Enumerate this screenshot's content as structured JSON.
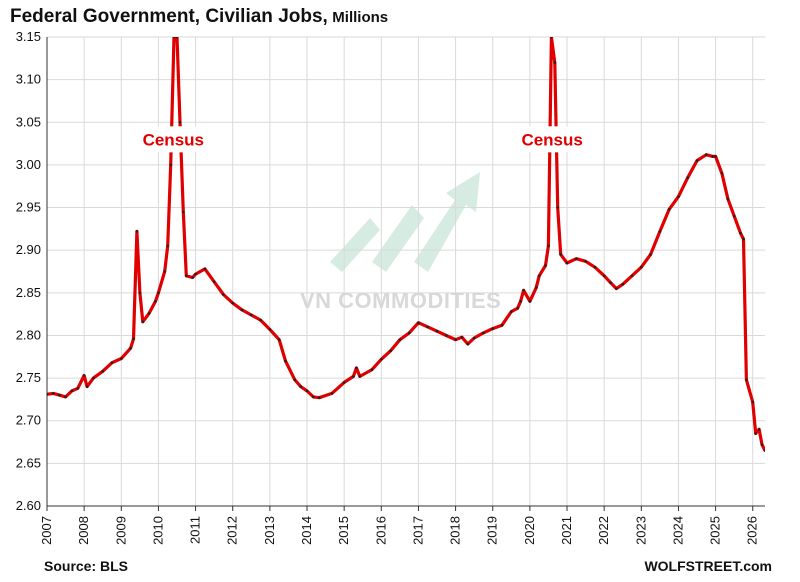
{
  "title": "Federal Government, Civilian Jobs,",
  "title_unit": "Millions",
  "source": "Source: BLS",
  "credit": "WOLFSTREET.com",
  "watermark": "VN COMMODITIES",
  "colors": {
    "line": "#e00000",
    "markers": "#222222",
    "grid": "#d9d9d9",
    "watermark": "#cfe8dc"
  },
  "chart_data": {
    "type": "line",
    "title": "Federal Government, Civilian Jobs, Millions",
    "xlabel": "",
    "ylabel": "",
    "xlim": [
      2007,
      2026.33
    ],
    "ylim": [
      2.6,
      3.15
    ],
    "grid": true,
    "y_ticks": [
      "2.60",
      "2.65",
      "2.70",
      "2.75",
      "2.80",
      "2.85",
      "2.90",
      "2.95",
      "3.00",
      "3.05",
      "3.10",
      "3.15"
    ],
    "x_ticks": [
      "2007",
      "2008",
      "2009",
      "2010",
      "2011",
      "2012",
      "2013",
      "2014",
      "2015",
      "2016",
      "2017",
      "2018",
      "2019",
      "2020",
      "2021",
      "2022",
      "2023",
      "2024",
      "2025",
      "2026"
    ],
    "annotations": [
      {
        "text": "Census",
        "x": 2010.4,
        "y": 3.03
      },
      {
        "text": "Census",
        "x": 2020.6,
        "y": 3.03
      }
    ],
    "series": [
      {
        "points": [
          [
            2007.0,
            2.731
          ],
          [
            2007.17,
            2.732
          ],
          [
            2007.33,
            2.73
          ],
          [
            2007.5,
            2.728
          ],
          [
            2007.67,
            2.735
          ],
          [
            2007.83,
            2.738
          ],
          [
            2008.0,
            2.753
          ],
          [
            2008.08,
            2.74
          ],
          [
            2008.25,
            2.75
          ],
          [
            2008.5,
            2.758
          ],
          [
            2008.75,
            2.768
          ],
          [
            2009.0,
            2.773
          ],
          [
            2009.25,
            2.785
          ],
          [
            2009.33,
            2.796
          ],
          [
            2009.42,
            2.922
          ],
          [
            2009.5,
            2.85
          ],
          [
            2009.58,
            2.816
          ],
          [
            2009.75,
            2.826
          ],
          [
            2009.92,
            2.84
          ],
          [
            2010.0,
            2.85
          ],
          [
            2010.17,
            2.875
          ],
          [
            2010.25,
            2.905
          ],
          [
            2010.33,
            3.0
          ],
          [
            2010.42,
            3.15
          ],
          [
            2010.5,
            3.15
          ],
          [
            2010.58,
            3.05
          ],
          [
            2010.67,
            2.945
          ],
          [
            2010.75,
            2.87
          ],
          [
            2010.92,
            2.868
          ],
          [
            2011.0,
            2.872
          ],
          [
            2011.25,
            2.878
          ],
          [
            2011.5,
            2.863
          ],
          [
            2011.75,
            2.848
          ],
          [
            2012.0,
            2.838
          ],
          [
            2012.25,
            2.83
          ],
          [
            2012.5,
            2.824
          ],
          [
            2012.75,
            2.818
          ],
          [
            2013.0,
            2.807
          ],
          [
            2013.25,
            2.795
          ],
          [
            2013.42,
            2.77
          ],
          [
            2013.67,
            2.748
          ],
          [
            2013.83,
            2.74
          ],
          [
            2014.0,
            2.735
          ],
          [
            2014.17,
            2.728
          ],
          [
            2014.33,
            2.727
          ],
          [
            2014.67,
            2.732
          ],
          [
            2015.0,
            2.745
          ],
          [
            2015.25,
            2.752
          ],
          [
            2015.33,
            2.762
          ],
          [
            2015.42,
            2.752
          ],
          [
            2015.75,
            2.76
          ],
          [
            2016.0,
            2.772
          ],
          [
            2016.25,
            2.782
          ],
          [
            2016.5,
            2.795
          ],
          [
            2016.75,
            2.803
          ],
          [
            2017.0,
            2.815
          ],
          [
            2017.25,
            2.81
          ],
          [
            2017.5,
            2.805
          ],
          [
            2017.75,
            2.8
          ],
          [
            2018.0,
            2.795
          ],
          [
            2018.17,
            2.798
          ],
          [
            2018.33,
            2.79
          ],
          [
            2018.5,
            2.797
          ],
          [
            2018.75,
            2.803
          ],
          [
            2019.0,
            2.808
          ],
          [
            2019.25,
            2.812
          ],
          [
            2019.5,
            2.828
          ],
          [
            2019.67,
            2.832
          ],
          [
            2019.75,
            2.84
          ],
          [
            2019.83,
            2.853
          ],
          [
            2020.0,
            2.84
          ],
          [
            2020.17,
            2.856
          ],
          [
            2020.25,
            2.87
          ],
          [
            2020.42,
            2.882
          ],
          [
            2020.5,
            2.905
          ],
          [
            2020.58,
            3.15
          ],
          [
            2020.67,
            3.12
          ],
          [
            2020.75,
            2.95
          ],
          [
            2020.83,
            2.895
          ],
          [
            2021.0,
            2.885
          ],
          [
            2021.25,
            2.89
          ],
          [
            2021.5,
            2.887
          ],
          [
            2021.75,
            2.88
          ],
          [
            2022.0,
            2.87
          ],
          [
            2022.17,
            2.862
          ],
          [
            2022.33,
            2.855
          ],
          [
            2022.5,
            2.86
          ],
          [
            2022.75,
            2.87
          ],
          [
            2023.0,
            2.88
          ],
          [
            2023.25,
            2.895
          ],
          [
            2023.5,
            2.922
          ],
          [
            2023.75,
            2.948
          ],
          [
            2024.0,
            2.963
          ],
          [
            2024.25,
            2.985
          ],
          [
            2024.5,
            3.005
          ],
          [
            2024.75,
            3.012
          ],
          [
            2024.92,
            3.01
          ],
          [
            2025.0,
            3.01
          ],
          [
            2025.17,
            2.99
          ],
          [
            2025.33,
            2.96
          ],
          [
            2025.5,
            2.94
          ],
          [
            2025.67,
            2.92
          ],
          [
            2025.75,
            2.913
          ],
          [
            2025.83,
            2.748
          ],
          [
            2026.0,
            2.722
          ],
          [
            2026.08,
            2.685
          ],
          [
            2026.17,
            2.69
          ],
          [
            2026.25,
            2.672
          ],
          [
            2026.33,
            2.665
          ]
        ]
      }
    ]
  }
}
